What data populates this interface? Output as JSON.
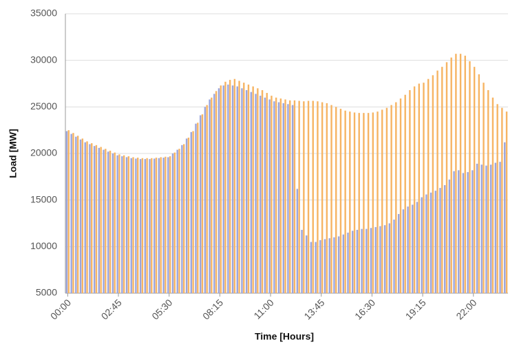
{
  "chart_data": {
    "type": "bar",
    "x_label": "Time [Hours]",
    "y_label": "Load [MW]",
    "categories": [
      "00:00",
      null,
      null,
      null,
      null,
      null,
      null,
      null,
      null,
      null,
      null,
      "02:45",
      null,
      null,
      null,
      null,
      null,
      null,
      null,
      null,
      null,
      null,
      "05:30",
      null,
      null,
      null,
      null,
      null,
      null,
      null,
      null,
      null,
      null,
      "08:15",
      null,
      null,
      null,
      null,
      null,
      null,
      null,
      null,
      null,
      null,
      "11:00",
      null,
      null,
      null,
      null,
      null,
      null,
      null,
      null,
      null,
      null,
      "13:45",
      null,
      null,
      null,
      null,
      null,
      null,
      null,
      null,
      null,
      null,
      "16:30",
      null,
      null,
      null,
      null,
      null,
      null,
      null,
      null,
      null,
      null,
      "19:15",
      null,
      null,
      null,
      null,
      null,
      null,
      null,
      null,
      null,
      null,
      "22:00",
      null,
      null,
      null,
      null,
      null,
      null,
      null
    ],
    "series": [
      {
        "color": "#9ba5dc",
        "values": [
          22400,
          22100,
          21800,
          21500,
          21200,
          21000,
          20800,
          20600,
          20400,
          20200,
          20000,
          19800,
          19700,
          19600,
          19500,
          19450,
          19400,
          19400,
          19400,
          19450,
          19500,
          19550,
          19600,
          20000,
          20400,
          20900,
          21600,
          22300,
          23200,
          24100,
          25000,
          25800,
          26400,
          27000,
          27300,
          27400,
          27300,
          27200,
          27000,
          26800,
          26600,
          26400,
          26200,
          26000,
          25800,
          25600,
          25500,
          25400,
          25300,
          25200,
          16200,
          11800,
          11200,
          10500,
          10500,
          10700,
          10800,
          10900,
          11000,
          11100,
          11300,
          11500,
          11700,
          11800,
          11900,
          11900,
          12000,
          12100,
          12200,
          12300,
          12500,
          12900,
          13500,
          14000,
          14300,
          14500,
          14800,
          15300,
          15600,
          15800,
          16000,
          16300,
          16600,
          17200,
          18100,
          18200,
          17900,
          18000,
          18200,
          18900,
          18800,
          18700,
          18800,
          19000,
          19100,
          21200
        ]
      },
      {
        "color": "#f6b463",
        "values": [
          22500,
          22200,
          21900,
          21600,
          21300,
          21100,
          20900,
          20700,
          20500,
          20300,
          20100,
          19900,
          19800,
          19700,
          19600,
          19550,
          19500,
          19500,
          19500,
          19550,
          19600,
          19650,
          19700,
          20100,
          20500,
          21000,
          21700,
          22400,
          23300,
          24200,
          25200,
          26000,
          26700,
          27300,
          27700,
          27900,
          28000,
          27800,
          27600,
          27400,
          27200,
          27000,
          26800,
          26500,
          26200,
          26000,
          25900,
          25800,
          25700,
          25700,
          25650,
          25600,
          25650,
          25650,
          25600,
          25500,
          25400,
          25200,
          25000,
          24800,
          24600,
          24500,
          24400,
          24350,
          24350,
          24350,
          24400,
          24500,
          24700,
          24900,
          25200,
          25500,
          25900,
          26300,
          26800,
          27200,
          27500,
          27600,
          28000,
          28400,
          28900,
          29300,
          29800,
          30300,
          30700,
          30700,
          30500,
          29900,
          29300,
          28500,
          27600,
          26800,
          26000,
          25300,
          24900,
          24500
        ]
      }
    ],
    "ylim": [
      5000,
      35000
    ],
    "yticks": [
      5000,
      10000,
      15000,
      20000,
      25000,
      30000,
      35000
    ],
    "grid": true
  }
}
